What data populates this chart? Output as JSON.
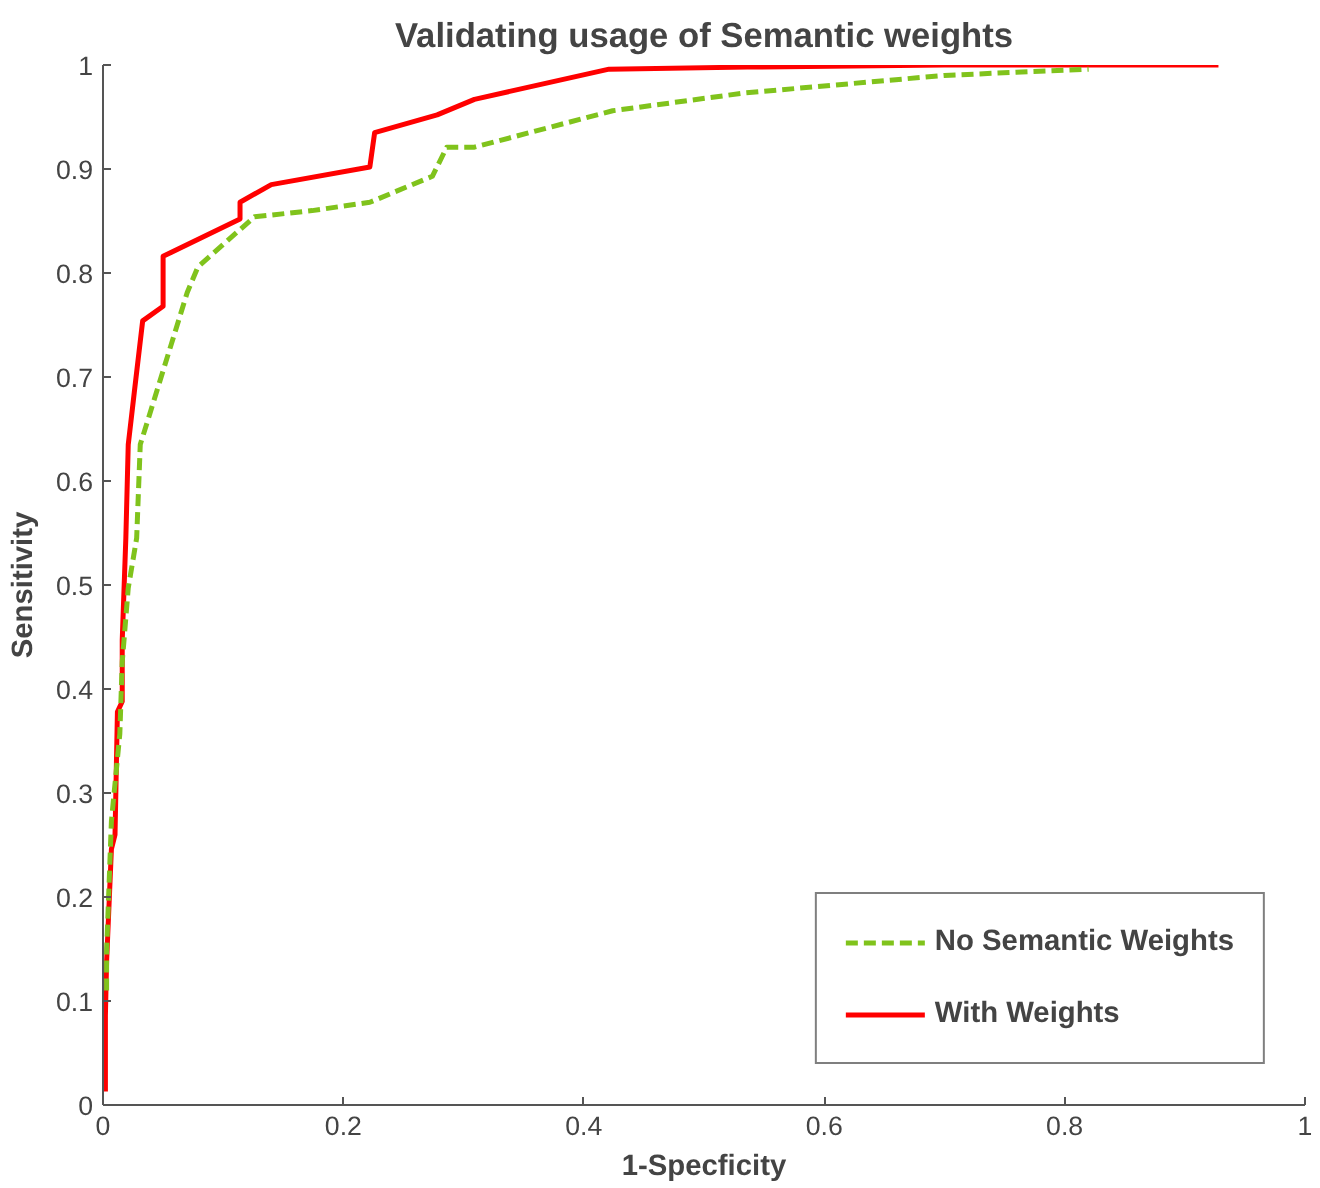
{
  "chart_data": {
    "type": "line",
    "title": "Validating usage of Semantic weights",
    "xlabel": "1-Specficity",
    "ylabel": "Sensitivity",
    "xlim": [
      0,
      1
    ],
    "ylim": [
      0,
      1
    ],
    "xticks": [
      0,
      0.2,
      0.4,
      0.6,
      0.8,
      1
    ],
    "yticks": [
      0,
      0.1,
      0.2,
      0.3,
      0.4,
      0.5,
      0.6,
      0.7,
      0.8,
      0.9,
      1
    ],
    "grid": false,
    "legend": "bottom right",
    "marker": "none",
    "series": [
      {
        "name": "No Semantic Weights",
        "color": "#80c31c",
        "line_style": "dashed",
        "x": [
          0.003,
          0.003,
          0.007,
          0.014,
          0.016,
          0.021,
          0.028,
          0.031,
          0.05,
          0.07,
          0.079,
          0.126,
          0.174,
          0.222,
          0.274,
          0.286,
          0.309,
          0.424,
          0.533,
          0.7,
          0.82
        ],
        "values": [
          0.11,
          0.148,
          0.273,
          0.357,
          0.426,
          0.497,
          0.545,
          0.635,
          0.706,
          0.781,
          0.806,
          0.854,
          0.86,
          0.868,
          0.893,
          0.921,
          0.921,
          0.956,
          0.973,
          0.99,
          0.996
        ]
      },
      {
        "name": "With Weights",
        "color": "#ff0000",
        "line_style": "solid",
        "x": [
          0.002,
          0.002,
          0.003,
          0.007,
          0.01,
          0.012,
          0.016,
          0.016,
          0.019,
          0.021,
          0.026,
          0.033,
          0.05,
          0.05,
          0.114,
          0.114,
          0.14,
          0.222,
          0.226,
          0.278,
          0.309,
          0.421,
          0.536,
          0.7,
          0.928
        ],
        "values": [
          0.013,
          0.086,
          0.138,
          0.246,
          0.26,
          0.378,
          0.388,
          0.447,
          0.545,
          0.635,
          0.685,
          0.754,
          0.768,
          0.816,
          0.852,
          0.868,
          0.885,
          0.902,
          0.935,
          0.952,
          0.967,
          0.996,
          0.998,
          1.0,
          1.0
        ]
      }
    ]
  }
}
